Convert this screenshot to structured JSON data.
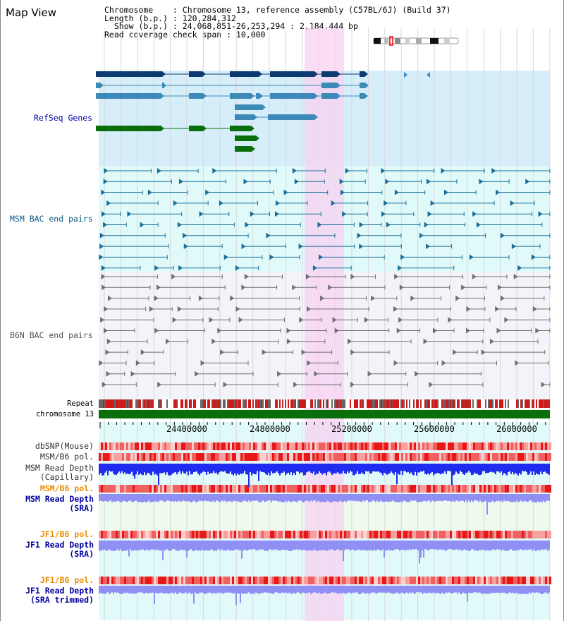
{
  "page": {
    "title": "Map View"
  },
  "info": {
    "line1": "Chromosome    : Chromosome 13, reference assembly (C57BL/6J) (Build 37)",
    "line2": "Length (b.p.) : 120,284,312",
    "line3": "  Show (b.p.) : 24,068,851-26,253,294 : 2,184,444 bp",
    "line4": "Read coverage check span : 10,000"
  },
  "tracks": {
    "refseq": "RefSeq Genes",
    "msm_bac": "MSM BAC end pairs",
    "b6n_bac": "B6N BAC end pairs",
    "repeat": "Repeat",
    "chromosome": "chromosome 13",
    "dbsnp": "dbSNP(Mouse)",
    "msm_b6_pol_1": "MSM/B6 pol.",
    "msm_read_depth_cap": "MSM Read Depth\n(Capillary)",
    "msm_b6_pol_2": "MSM/B6 pol.",
    "msm_read_depth_sra": "MSM Read Depth\n(SRA)",
    "jf1_b6_pol_1": "JF1/B6 pol.",
    "jf1_read_depth_sra": "JF1 Read Depth\n(SRA)",
    "jf1_b6_pol_2": "JF1/B6 pol.",
    "jf1_read_depth_trim": "JF1 Read Depth\n(SRA trimmed)"
  },
  "axis": {
    "ticks": [
      "24400000",
      "24800000",
      "25200000",
      "25600000",
      "26000000"
    ]
  },
  "colors": {
    "refseq_bg": "#d6eefa",
    "msm_bac_bg": "#e0fafa",
    "b6n_bac_bg": "#f2f4fa",
    "highlight": "#f8d2f0",
    "chromosome_bar": "#0a6e0a",
    "snp_red": "#e83030",
    "depth_blue": "#1f2cf0",
    "sra_blue": "#8f8ff4",
    "label_blue": "#0000a0",
    "label_orange": "#e88c00"
  }
}
